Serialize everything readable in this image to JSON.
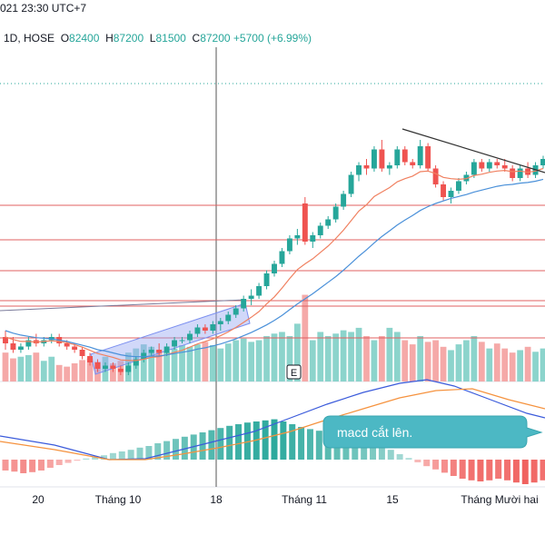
{
  "header": {
    "datetime": "021 23:30 UTC+7",
    "symbol_info": "1D, HOSE",
    "ohlc": [
      {
        "label": "O",
        "value": "82400"
      },
      {
        "label": "H",
        "value": "87200"
      },
      {
        "label": "L",
        "value": "81500"
      },
      {
        "label": "C",
        "value": "87200"
      }
    ],
    "change": "+5700 (+6.99%)"
  },
  "annotation": {
    "callout_text": "macd cắt lên.",
    "event_badge": "E"
  },
  "colors": {
    "up": "#26a69a",
    "down": "#ef5350",
    "ema_fast": "#f08060",
    "ema_slow": "#4a90d9",
    "horizontal_line": "#e06060",
    "macd_line": "#3b5bdb",
    "signal_line": "#f5923e",
    "callout_bg": "#4cb8c4",
    "channel": "#7b8ff0"
  },
  "chart_data": {
    "type": "candlestick",
    "x_ticks": [
      "20",
      "Tháng 10",
      "18",
      "Tháng 11",
      "15",
      "Tháng Mười hai"
    ],
    "candles": [
      {
        "o": 65,
        "h": 66,
        "l": 63,
        "c": 64
      },
      {
        "o": 64,
        "h": 65,
        "l": 62.5,
        "c": 63
      },
      {
        "o": 63,
        "h": 64,
        "l": 62.5,
        "c": 63.5
      },
      {
        "o": 63.5,
        "h": 65,
        "l": 63,
        "c": 64.5
      },
      {
        "o": 64.5,
        "h": 65.5,
        "l": 63.5,
        "c": 64
      },
      {
        "o": 64,
        "h": 65,
        "l": 63.5,
        "c": 64.5
      },
      {
        "o": 64.5,
        "h": 65.5,
        "l": 64,
        "c": 65
      },
      {
        "o": 65,
        "h": 65.5,
        "l": 63.5,
        "c": 64
      },
      {
        "o": 64,
        "h": 64.5,
        "l": 63,
        "c": 63.5
      },
      {
        "o": 63.5,
        "h": 64,
        "l": 62.5,
        "c": 63
      },
      {
        "o": 63,
        "h": 63.5,
        "l": 61.5,
        "c": 62
      },
      {
        "o": 62,
        "h": 62.5,
        "l": 60.5,
        "c": 61
      },
      {
        "o": 61,
        "h": 61.5,
        "l": 59.5,
        "c": 60
      },
      {
        "o": 60,
        "h": 61,
        "l": 59.5,
        "c": 60.5
      },
      {
        "o": 60.5,
        "h": 61,
        "l": 59.5,
        "c": 60
      },
      {
        "o": 60,
        "h": 60.5,
        "l": 59,
        "c": 59.5
      },
      {
        "o": 59.5,
        "h": 61,
        "l": 59,
        "c": 60.5
      },
      {
        "o": 60.5,
        "h": 62,
        "l": 60,
        "c": 61.5
      },
      {
        "o": 61.5,
        "h": 63,
        "l": 61,
        "c": 62.5
      },
      {
        "o": 62.5,
        "h": 63.5,
        "l": 62,
        "c": 63
      },
      {
        "o": 63,
        "h": 64,
        "l": 62,
        "c": 62.5
      },
      {
        "o": 62.5,
        "h": 64,
        "l": 62,
        "c": 63.5
      },
      {
        "o": 63.5,
        "h": 65,
        "l": 63,
        "c": 64.5
      },
      {
        "o": 64.5,
        "h": 65,
        "l": 64,
        "c": 64.5
      },
      {
        "o": 64.5,
        "h": 66,
        "l": 64,
        "c": 65.5
      },
      {
        "o": 65.5,
        "h": 67,
        "l": 65,
        "c": 66.5
      },
      {
        "o": 66.5,
        "h": 67,
        "l": 65.5,
        "c": 66
      },
      {
        "o": 66,
        "h": 67.5,
        "l": 65.5,
        "c": 67
      },
      {
        "o": 67,
        "h": 68,
        "l": 66,
        "c": 67.5
      },
      {
        "o": 67.5,
        "h": 69,
        "l": 67,
        "c": 68.5
      },
      {
        "o": 68.5,
        "h": 70,
        "l": 68,
        "c": 69.5
      },
      {
        "o": 69.5,
        "h": 71.5,
        "l": 69,
        "c": 71
      },
      {
        "o": 71,
        "h": 72.5,
        "l": 70,
        "c": 71.5
      },
      {
        "o": 71.5,
        "h": 73.5,
        "l": 71,
        "c": 73
      },
      {
        "o": 73,
        "h": 75.5,
        "l": 72.5,
        "c": 75
      },
      {
        "o": 75,
        "h": 77,
        "l": 74.5,
        "c": 76.5
      },
      {
        "o": 76.5,
        "h": 79,
        "l": 76,
        "c": 78.5
      },
      {
        "o": 78.5,
        "h": 81,
        "l": 78,
        "c": 80.5
      },
      {
        "o": 80.5,
        "h": 82,
        "l": 79.5,
        "c": 81
      },
      {
        "o": 86,
        "h": 87,
        "l": 79.5,
        "c": 80
      },
      {
        "o": 80,
        "h": 81.5,
        "l": 79,
        "c": 81
      },
      {
        "o": 81,
        "h": 83,
        "l": 80.5,
        "c": 82.5
      },
      {
        "o": 82.5,
        "h": 84,
        "l": 82,
        "c": 83.5
      },
      {
        "o": 83.5,
        "h": 86,
        "l": 83,
        "c": 85.5
      },
      {
        "o": 85.5,
        "h": 88,
        "l": 85,
        "c": 87.5
      },
      {
        "o": 87.5,
        "h": 91,
        "l": 87,
        "c": 90.5
      },
      {
        "o": 90.5,
        "h": 92.5,
        "l": 89.5,
        "c": 92
      },
      {
        "o": 92,
        "h": 93,
        "l": 90.5,
        "c": 91.5
      },
      {
        "o": 91.5,
        "h": 95,
        "l": 91,
        "c": 94.5
      },
      {
        "o": 94.5,
        "h": 96,
        "l": 91,
        "c": 91.5
      },
      {
        "o": 91.5,
        "h": 92.5,
        "l": 90.5,
        "c": 92
      },
      {
        "o": 92,
        "h": 95,
        "l": 91.5,
        "c": 94.5
      },
      {
        "o": 94.5,
        "h": 95,
        "l": 92,
        "c": 92.5
      },
      {
        "o": 92.5,
        "h": 93,
        "l": 91.5,
        "c": 92
      },
      {
        "o": 92,
        "h": 96,
        "l": 91.5,
        "c": 95
      },
      {
        "o": 95,
        "h": 95.5,
        "l": 91,
        "c": 91.5
      },
      {
        "o": 91.5,
        "h": 92,
        "l": 88.5,
        "c": 89
      },
      {
        "o": 89,
        "h": 89.5,
        "l": 86.5,
        "c": 87
      },
      {
        "o": 87,
        "h": 88.5,
        "l": 86,
        "c": 88
      },
      {
        "o": 88,
        "h": 90,
        "l": 87.5,
        "c": 89.5
      },
      {
        "o": 89.5,
        "h": 91,
        "l": 89,
        "c": 90.5
      },
      {
        "o": 90.5,
        "h": 93,
        "l": 90,
        "c": 92.5
      },
      {
        "o": 92.5,
        "h": 93,
        "l": 91,
        "c": 91.5
      },
      {
        "o": 91.5,
        "h": 93,
        "l": 91,
        "c": 92.5
      },
      {
        "o": 92.5,
        "h": 93,
        "l": 91.5,
        "c": 92
      },
      {
        "o": 92,
        "h": 93,
        "l": 91,
        "c": 91.5
      },
      {
        "o": 91.5,
        "h": 92,
        "l": 89.5,
        "c": 90
      },
      {
        "o": 90,
        "h": 92,
        "l": 89.5,
        "c": 91.5
      },
      {
        "o": 91.5,
        "h": 92.5,
        "l": 90,
        "c": 90.5
      },
      {
        "o": 90.5,
        "h": 92.5,
        "l": 90,
        "c": 92
      },
      {
        "o": 92,
        "h": 93.5,
        "l": 91.5,
        "c": 93
      }
    ],
    "ema_fast": [
      65,
      64.6,
      64.3,
      64.3,
      64.2,
      64.3,
      64.4,
      64.3,
      64.1,
      63.8,
      63.4,
      62.9,
      62.4,
      62.1,
      61.8,
      61.4,
      61.3,
      61.3,
      61.5,
      61.8,
      61.9,
      62.2,
      62.6,
      62.9,
      63.4,
      63.9,
      64.3,
      64.7,
      65.2,
      65.8,
      66.5,
      67.3,
      68.1,
      69,
      70.2,
      71.3,
      72.7,
      74.2,
      75.6,
      76.5,
      77.3,
      78.3,
      79.3,
      80.5,
      81.8,
      83.3,
      84.8,
      85.8,
      87.1,
      87.8,
      88.5,
      89.4,
      89.9,
      90.3,
      91,
      91.1,
      90.7,
      90.1,
      89.9,
      89.8,
      89.9,
      90.4,
      90.6,
      90.9,
      91.1,
      91.2,
      91,
      91.1,
      90.9,
      91.1,
      91.5
    ],
    "ema_slow": [
      66,
      65.6,
      65.3,
      65.1,
      64.9,
      64.8,
      64.7,
      64.5,
      64.3,
      64,
      63.7,
      63.4,
      63,
      62.8,
      62.5,
      62.2,
      62,
      61.9,
      61.9,
      62,
      62,
      62.2,
      62.4,
      62.6,
      62.8,
      63.1,
      63.3,
      63.6,
      63.9,
      64.3,
      64.7,
      65.2,
      65.7,
      66.3,
      66.9,
      67.6,
      68.4,
      69.3,
      70.2,
      71,
      71.8,
      72.7,
      73.6,
      74.5,
      75.5,
      76.6,
      77.7,
      78.7,
      79.8,
      80.8,
      81.7,
      82.6,
      83.4,
      84.1,
      84.9,
      85.5,
      86,
      86.4,
      86.8,
      87.1,
      87.4,
      87.8,
      88.1,
      88.4,
      88.7,
      88.9,
      89,
      89.2,
      89.3,
      89.5,
      89.8
    ],
    "volumes": [
      35,
      28,
      30,
      32,
      35,
      25,
      30,
      20,
      18,
      22,
      26,
      28,
      24,
      30,
      22,
      25,
      35,
      40,
      45,
      42,
      38,
      36,
      40,
      44,
      42,
      45,
      48,
      44,
      40,
      46,
      50,
      52,
      48,
      50,
      55,
      58,
      60,
      55,
      70,
      105,
      50,
      60,
      55,
      58,
      62,
      60,
      65,
      55,
      50,
      55,
      65,
      60,
      50,
      45,
      55,
      48,
      50,
      42,
      38,
      45,
      50,
      55,
      48,
      40,
      46,
      40,
      35,
      38,
      42,
      36,
      40
    ],
    "macd_hist": [
      -2,
      -2.2,
      -2.5,
      -2.3,
      -2,
      -1.5,
      -1,
      -0.6,
      -0.2,
      0.2,
      0.5,
      0.8,
      1.2,
      1.5,
      1.8,
      2.2,
      2.5,
      3,
      3.4,
      3.8,
      4.2,
      4.6,
      5,
      5.4,
      5.8,
      6.2,
      6.5,
      6.8,
      7,
      7.2,
      7.4,
      7,
      6.5,
      6,
      5.6,
      5.3,
      5,
      4.6,
      4.2,
      3.8,
      3.4,
      3,
      2.5,
      1.8,
      1,
      0.3,
      -0.5,
      -1.2,
      -1.8,
      -2.4,
      -3,
      -3.5,
      -3.8,
      -4,
      -3.8,
      -3.5,
      -3.8,
      -4.2,
      -4.5,
      -4.2,
      -3.8
    ]
  }
}
